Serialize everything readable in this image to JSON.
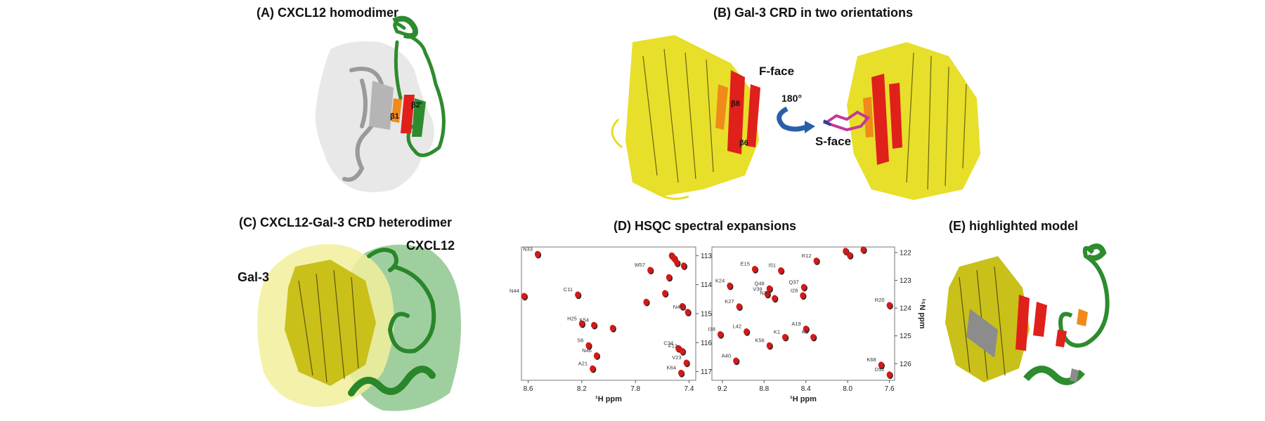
{
  "panels": {
    "a": {
      "title": "(A) CXCL12 homodimer",
      "labels": {
        "b1": "β1",
        "b2": "β2'"
      }
    },
    "b": {
      "title": "(B) Gal-3 CRD in two orientations",
      "labels": {
        "fface": "F-face",
        "sface": "S-face",
        "rotation": "180°",
        "b8": "β8",
        "b6": "β6"
      }
    },
    "c": {
      "title": "(C) CXCL12-Gal-3 CRD heterodimer",
      "labels": {
        "gal3": "Gal-3",
        "cxcl12": "CXCL12"
      }
    },
    "d": {
      "title": "(D) HSQC spectral expansions"
    },
    "e": {
      "title": "(E) highlighted model"
    }
  },
  "colors": {
    "gal3": "#e6dd1f",
    "cxcl12": "#2e8b2e",
    "perturbed": "#e0201a",
    "moderate": "#f08a1a",
    "monomer": "#aaaaaa"
  },
  "chart_data": [
    {
      "type": "scatter",
      "xlabel": "¹H ppm",
      "ylabel": "",
      "xlim": [
        8.65,
        7.35
      ],
      "ylim": [
        117.3,
        112.7
      ],
      "xticks": [
        8.6,
        8.2,
        7.8,
        7.4
      ],
      "yticks": [
        113,
        114,
        115,
        116,
        117
      ],
      "peaks": [
        {
          "label": "N33",
          "x": 8.53,
          "y": 112.95
        },
        {
          "label": "",
          "x": 7.53,
          "y": 113.0
        },
        {
          "label": "",
          "x": 7.51,
          "y": 113.1
        },
        {
          "label": "",
          "x": 7.49,
          "y": 113.25
        },
        {
          "label": "W57",
          "x": 7.69,
          "y": 113.5
        },
        {
          "label": "",
          "x": 7.44,
          "y": 113.35
        },
        {
          "label": "",
          "x": 7.55,
          "y": 113.75
        },
        {
          "label": "",
          "x": 7.58,
          "y": 114.3
        },
        {
          "label": "C11",
          "x": 8.23,
          "y": 114.35
        },
        {
          "label": "N44",
          "x": 8.63,
          "y": 114.4
        },
        {
          "label": "",
          "x": 7.72,
          "y": 114.6
        },
        {
          "label": "",
          "x": 7.45,
          "y": 114.75
        },
        {
          "label": "N45",
          "x": 7.41,
          "y": 114.95
        },
        {
          "label": "H25",
          "x": 8.2,
          "y": 115.35
        },
        {
          "label": "K54",
          "x": 8.11,
          "y": 115.4
        },
        {
          "label": "",
          "x": 7.97,
          "y": 115.5
        },
        {
          "label": "S6",
          "x": 8.15,
          "y": 116.1
        },
        {
          "label": "N46",
          "x": 8.09,
          "y": 116.45
        },
        {
          "label": "C34",
          "x": 7.48,
          "y": 116.2
        },
        {
          "label": "F13",
          "x": 7.45,
          "y": 116.3
        },
        {
          "label": "A21",
          "x": 8.12,
          "y": 116.9
        },
        {
          "label": "V23",
          "x": 7.42,
          "y": 116.7
        },
        {
          "label": "K64",
          "x": 7.46,
          "y": 117.05
        }
      ]
    },
    {
      "type": "scatter",
      "xlabel": "¹H ppm",
      "ylabel": "¹⁵N ppm",
      "xlim": [
        9.3,
        7.55
      ],
      "ylim": [
        126.6,
        121.8
      ],
      "xticks": [
        9.2,
        8.8,
        8.4,
        8.0,
        7.6
      ],
      "yticks": [
        122,
        123,
        124,
        125,
        126
      ],
      "peaks": [
        {
          "label": "",
          "x": 8.02,
          "y": 121.95
        },
        {
          "label": "",
          "x": 7.98,
          "y": 122.1
        },
        {
          "label": "",
          "x": 7.85,
          "y": 121.9
        },
        {
          "label": "R12",
          "x": 8.3,
          "y": 122.3
        },
        {
          "label": "E15",
          "x": 8.89,
          "y": 122.6
        },
        {
          "label": "I51",
          "x": 8.64,
          "y": 122.65
        },
        {
          "label": "K24",
          "x": 9.13,
          "y": 123.2
        },
        {
          "label": "Q48",
          "x": 8.75,
          "y": 123.3
        },
        {
          "label": "Q37",
          "x": 8.42,
          "y": 123.25
        },
        {
          "label": "V39",
          "x": 8.77,
          "y": 123.5
        },
        {
          "label": "N30",
          "x": 8.7,
          "y": 123.65
        },
        {
          "label": "I28",
          "x": 8.43,
          "y": 123.55
        },
        {
          "label": "R20",
          "x": 7.6,
          "y": 123.9
        },
        {
          "label": "K27",
          "x": 9.04,
          "y": 123.95
        },
        {
          "label": "I38",
          "x": 9.22,
          "y": 124.95
        },
        {
          "label": "L42",
          "x": 8.97,
          "y": 124.85
        },
        {
          "label": "A19",
          "x": 8.4,
          "y": 124.75
        },
        {
          "label": "K1",
          "x": 8.6,
          "y": 125.05
        },
        {
          "label": "K5",
          "x": 8.33,
          "y": 125.05
        },
        {
          "label": "K56",
          "x": 8.75,
          "y": 125.35
        },
        {
          "label": "A40",
          "x": 9.07,
          "y": 125.9
        },
        {
          "label": "K68",
          "x": 7.68,
          "y": 126.05
        },
        {
          "label": "D52",
          "x": 7.6,
          "y": 126.4
        }
      ]
    }
  ]
}
